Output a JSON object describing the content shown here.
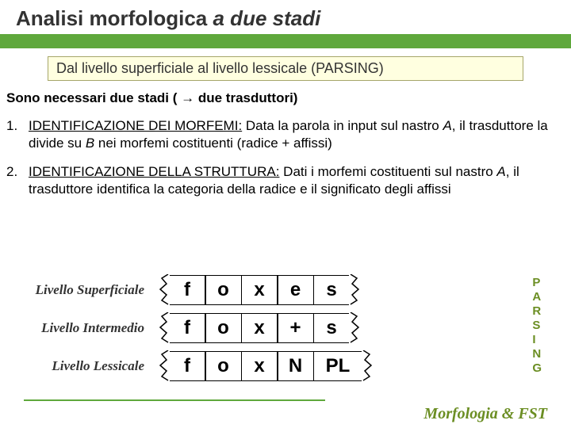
{
  "title_plain": "Analisi morfologica ",
  "title_italic": "a due stadi",
  "subtitle": "Dal livello superficiale al livello lessicale (PARSING)",
  "intro_pre": "Sono necessari due stadi ( ",
  "intro_arrow": "→",
  "intro_post": " due trasduttori)",
  "items": [
    {
      "num": "1.",
      "head": "IDENTIFICAZIONE DEI MORFEMI:",
      "body_parts": [
        " Data la parola in input sul nastro ",
        "A",
        ", il trasduttore la divide su ",
        "B",
        "  nei morfemi costituenti (radice + affissi)"
      ]
    },
    {
      "num": "2.",
      "head": "IDENTIFICAZIONE DELLA STRUTTURA:",
      "body_parts": [
        "  Dati i morfemi costituenti sul nastro ",
        "A",
        ", il trasduttore identifica la categoria della radice e il significato degli affissi"
      ]
    }
  ],
  "rows": [
    {
      "label": "Livello  Superficiale",
      "cells": [
        "f",
        "o",
        "x",
        "e",
        "s"
      ]
    },
    {
      "label": "Livello Intermedio",
      "cells": [
        "f",
        "o",
        "x",
        "+",
        "s"
      ]
    },
    {
      "label": "Livello Lessicale",
      "cells": [
        "f",
        "o",
        "x",
        "N",
        "PL"
      ]
    }
  ],
  "parsing": [
    "P",
    "A",
    "R",
    "S",
    "I",
    "N",
    "G"
  ],
  "footer": "Morfologia & FST",
  "colors": {
    "green": "#5fa83c",
    "olive": "#6b8e23",
    "yellow": "#ffffe0"
  }
}
